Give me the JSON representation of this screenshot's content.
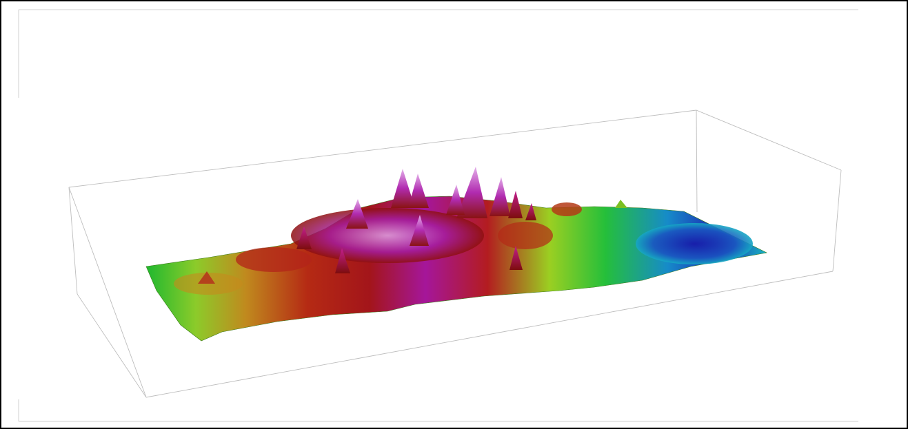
{
  "scene": {
    "kind": "3d-terrain-surface",
    "colormap": [
      "#1a1ab4",
      "#12a0c8",
      "#19c837",
      "#8cd21e",
      "#d2b414",
      "#d26414",
      "#b40f0f",
      "#a014a0",
      "#d28cdc"
    ],
    "background": "#ffffff",
    "frame_border_color": "#000000",
    "bounding_box_color": "#b4b4b4",
    "bounding_box_visible": true,
    "peak_region": "center",
    "low_region": "right"
  }
}
